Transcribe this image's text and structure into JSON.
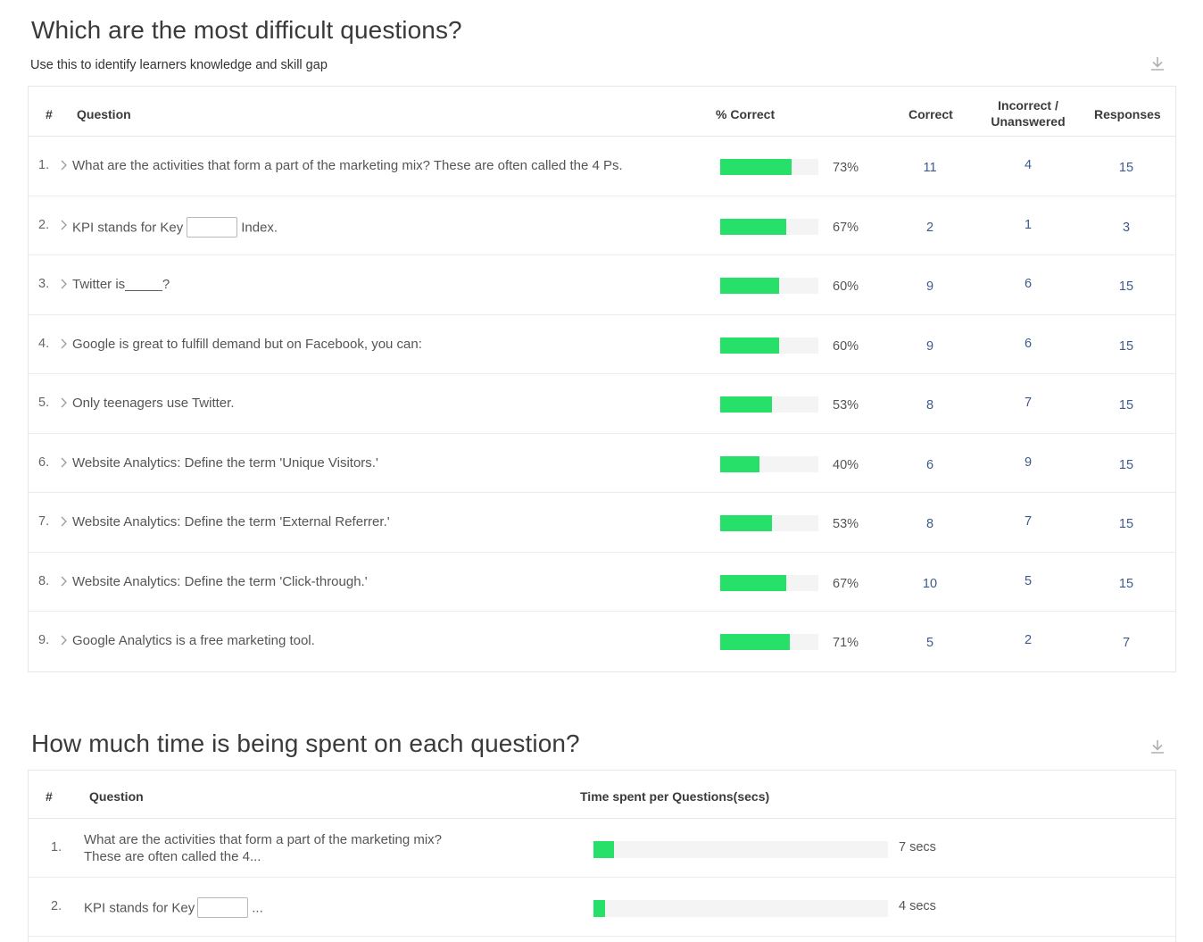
{
  "section1": {
    "title": "Which are the most difficult questions?",
    "subtitle": "Use this to identify learners knowledge and skill gap",
    "download_icon": "download-icon",
    "headers": {
      "num": "#",
      "question": "Question",
      "pct": "% Correct",
      "correct": "Correct",
      "incorrect_line1": "Incorrect /",
      "incorrect_line2": "Unanswered",
      "responses": "Responses"
    },
    "rows": [
      {
        "num": "1.",
        "q": "What are the activities that form a part of the marketing mix? These are often called the 4 Ps.",
        "q_after": "",
        "has_blank": false,
        "pct_value": 73,
        "pct": "73%",
        "correct": "11",
        "incorrect": "4",
        "responses": "15"
      },
      {
        "num": "2.",
        "q": "KPI stands for Key",
        "q_after": "Index.",
        "has_blank": true,
        "pct_value": 67,
        "pct": "67%",
        "correct": "2",
        "incorrect": "1",
        "responses": "3"
      },
      {
        "num": "3.",
        "q": "Twitter is_____?",
        "q_after": "",
        "has_blank": false,
        "pct_value": 60,
        "pct": "60%",
        "correct": "9",
        "incorrect": "6",
        "responses": "15"
      },
      {
        "num": "4.",
        "q": "Google is great to fulfill demand but on Facebook, you can:",
        "q_after": "",
        "has_blank": false,
        "pct_value": 60,
        "pct": "60%",
        "correct": "9",
        "incorrect": "6",
        "responses": "15"
      },
      {
        "num": "5.",
        "q": "Only teenagers use Twitter.",
        "q_after": "",
        "has_blank": false,
        "pct_value": 53,
        "pct": "53%",
        "correct": "8",
        "incorrect": "7",
        "responses": "15"
      },
      {
        "num": "6.",
        "q": "Website Analytics: Define the term 'Unique Visitors.'",
        "q_after": "",
        "has_blank": false,
        "pct_value": 40,
        "pct": "40%",
        "correct": "6",
        "incorrect": "9",
        "responses": "15"
      },
      {
        "num": "7.",
        "q": "Website Analytics: Define the term 'External Referrer.'",
        "q_after": "",
        "has_blank": false,
        "pct_value": 53,
        "pct": "53%",
        "correct": "8",
        "incorrect": "7",
        "responses": "15"
      },
      {
        "num": "8.",
        "q": "Website Analytics: Define the term 'Click-through.'",
        "q_after": "",
        "has_blank": false,
        "pct_value": 67,
        "pct": "67%",
        "correct": "10",
        "incorrect": "5",
        "responses": "15"
      },
      {
        "num": "9.",
        "q": "Google Analytics is a free marketing tool.",
        "q_after": "",
        "has_blank": false,
        "pct_value": 71,
        "pct": "71%",
        "correct": "5",
        "incorrect": "2",
        "responses": "7"
      }
    ]
  },
  "section2": {
    "title": "How much time is being spent on each question?",
    "download_icon": "download-icon",
    "headers": {
      "num": "#",
      "question": "Question",
      "time": "Time spent per Questions(secs)"
    },
    "max_secs": 100,
    "rows": [
      {
        "num": "1.",
        "q_line1": "What are the activities that form a part of the marketing mix?",
        "q_line2": "These are often called the 4...",
        "has_blank": false,
        "secs_value": 7,
        "secs": "7 secs"
      },
      {
        "num": "2.",
        "q_line1": "KPI stands for Key",
        "q_after": "...",
        "has_blank": true,
        "secs_value": 4,
        "secs": "4 secs"
      }
    ]
  },
  "colors": {
    "bar_fill": "#26e06a",
    "bar_track": "#f4f4f4",
    "link_number": "#3e5a8c"
  }
}
